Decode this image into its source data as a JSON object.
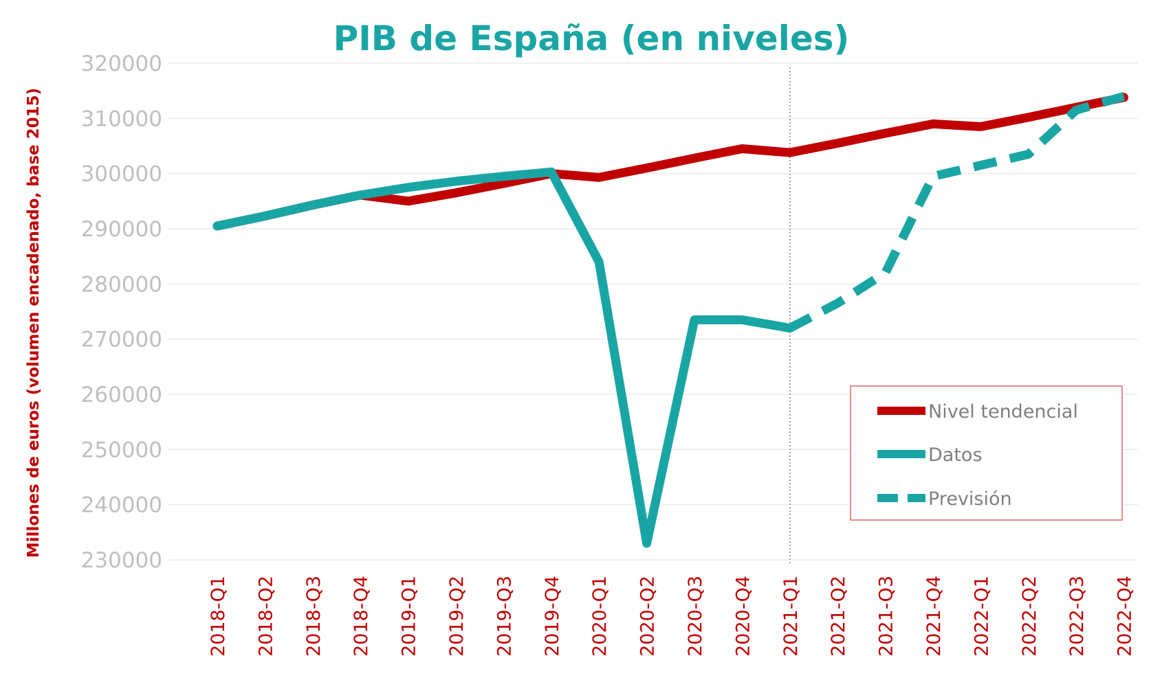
{
  "chart_data": {
    "type": "line",
    "title": "PIB de España (en niveles)",
    "ylabel": "Millones de euros (volumen encadenado, base 2015)",
    "xlabel": "",
    "categories": [
      "2018-Q1",
      "2018-Q2",
      "2018-Q3",
      "2018-Q4",
      "2019-Q1",
      "2019-Q2",
      "2019-Q3",
      "2019-Q4",
      "2020-Q1",
      "2020-Q2",
      "2020-Q3",
      "2020-Q4",
      "2021-Q1",
      "2021-Q2",
      "2021-Q3",
      "2021-Q4",
      "2022-Q1",
      "2022-Q2",
      "2022-Q3",
      "2022-Q4"
    ],
    "yticks": [
      "230000",
      "240000",
      "250000",
      "260000",
      "270000",
      "280000",
      "290000",
      "300000",
      "310000",
      "320000"
    ],
    "ylim": [
      230000,
      320000
    ],
    "grid": true,
    "legend_position": "bottom-right",
    "vertical_marker_category": "2021-Q1",
    "series": [
      {
        "name": "Nivel tendencial",
        "color": "#c00000",
        "style": "solid",
        "values": [
          290500,
          292300,
          294300,
          296100,
          295000,
          296500,
          298200,
          300000,
          299300,
          301000,
          302800,
          304500,
          303800,
          305500,
          307300,
          309000,
          308500,
          310200,
          312000,
          313800
        ]
      },
      {
        "name": "Datos",
        "color": "#1aa5a5",
        "style": "solid",
        "values": [
          290500,
          292300,
          294300,
          296100,
          297500,
          298600,
          299500,
          300300,
          284000,
          233000,
          273500,
          273500,
          272000,
          null,
          null,
          null,
          null,
          null,
          null,
          null
        ]
      },
      {
        "name": "Previsión",
        "color": "#1aa5a5",
        "style": "dashed",
        "values": [
          null,
          null,
          null,
          null,
          null,
          null,
          null,
          null,
          null,
          null,
          null,
          null,
          272000,
          276500,
          282000,
          299500,
          301500,
          303500,
          311500,
          314000
        ]
      }
    ],
    "colors": {
      "title": "#1aa5a5",
      "ylabel": "#c00000",
      "xticks": "#c00000",
      "yticks": "#bfbfbf",
      "grid": "#ececec",
      "legend_border": "#e06666",
      "legend_text": "#7f7f7f"
    }
  }
}
